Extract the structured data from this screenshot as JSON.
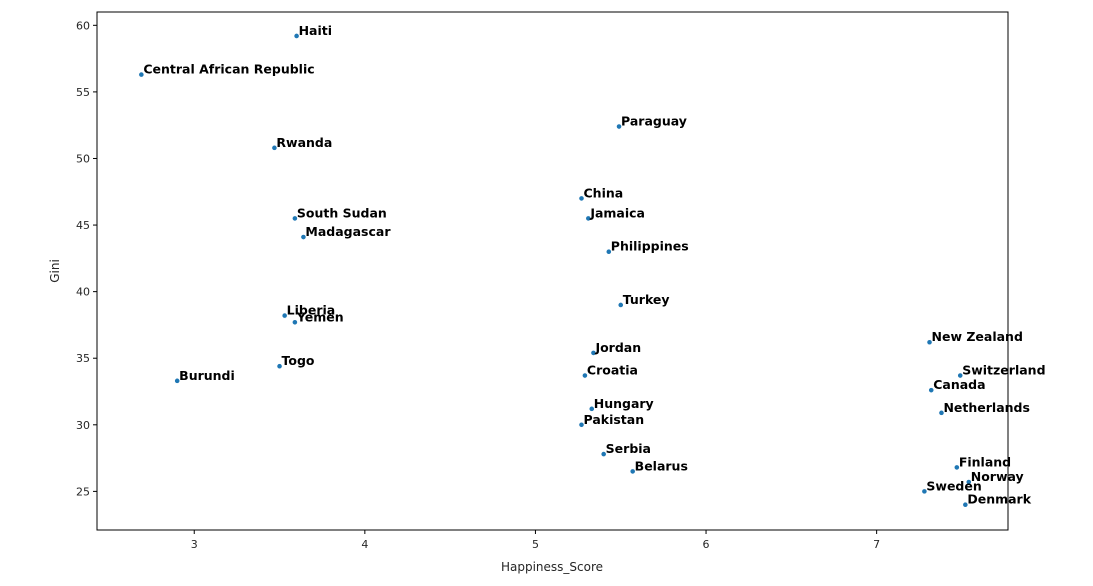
{
  "chart_data": {
    "type": "scatter",
    "title": "",
    "xlabel": "Happiness_Score",
    "ylabel": "Gini",
    "xlim": [
      2.43,
      7.77
    ],
    "ylim": [
      22.1,
      61.0
    ],
    "xticks": [
      3,
      4,
      5,
      6,
      7
    ],
    "yticks": [
      25,
      30,
      35,
      40,
      45,
      50,
      55,
      60
    ],
    "grid": false,
    "point_color": "#1f77b4",
    "points": [
      {
        "label": "Haiti",
        "x": 3.6,
        "y": 59.2
      },
      {
        "label": "Central African Republic",
        "x": 2.69,
        "y": 56.3
      },
      {
        "label": "Rwanda",
        "x": 3.47,
        "y": 50.8
      },
      {
        "label": "South Sudan",
        "x": 3.59,
        "y": 45.5
      },
      {
        "label": "Madagascar",
        "x": 3.64,
        "y": 44.1
      },
      {
        "label": "Liberia",
        "x": 3.53,
        "y": 38.2
      },
      {
        "label": "Yemen",
        "x": 3.59,
        "y": 37.7
      },
      {
        "label": "Togo",
        "x": 3.5,
        "y": 34.4
      },
      {
        "label": "Burundi",
        "x": 2.9,
        "y": 33.3
      },
      {
        "label": "Paraguay",
        "x": 5.49,
        "y": 52.4
      },
      {
        "label": "China",
        "x": 5.27,
        "y": 47.0
      },
      {
        "label": "Jamaica",
        "x": 5.31,
        "y": 45.5
      },
      {
        "label": "Philippines",
        "x": 5.43,
        "y": 43.0
      },
      {
        "label": "Turkey",
        "x": 5.5,
        "y": 39.0
      },
      {
        "label": "Jordan",
        "x": 5.34,
        "y": 35.4
      },
      {
        "label": "Croatia",
        "x": 5.29,
        "y": 33.7
      },
      {
        "label": "Hungary",
        "x": 5.33,
        "y": 31.2
      },
      {
        "label": "Pakistan",
        "x": 5.27,
        "y": 30.0
      },
      {
        "label": "Serbia",
        "x": 5.4,
        "y": 27.8
      },
      {
        "label": "Belarus",
        "x": 5.57,
        "y": 26.5
      },
      {
        "label": "New Zealand",
        "x": 7.31,
        "y": 36.2
      },
      {
        "label": "Switzerland",
        "x": 7.49,
        "y": 33.7
      },
      {
        "label": "Canada",
        "x": 7.32,
        "y": 32.6
      },
      {
        "label": "Netherlands",
        "x": 7.38,
        "y": 30.9
      },
      {
        "label": "Finland",
        "x": 7.47,
        "y": 26.8
      },
      {
        "label": "Norway",
        "x": 7.54,
        "y": 25.7
      },
      {
        "label": "Sweden",
        "x": 7.28,
        "y": 25.0
      },
      {
        "label": "Denmark",
        "x": 7.52,
        "y": 24.0
      }
    ]
  }
}
